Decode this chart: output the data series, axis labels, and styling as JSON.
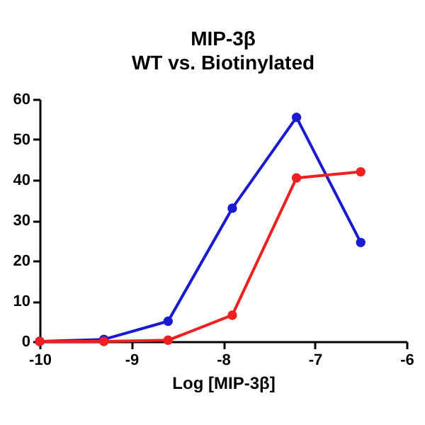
{
  "chart_data": {
    "type": "line",
    "title": "MIP-3β",
    "subtitle": "WT vs. Biotinylated",
    "xlabel": "Log [MIP-3β]",
    "x": [
      -10,
      -9.3,
      -8.6,
      -7.9,
      -7.2,
      -6.5
    ],
    "series": [
      {
        "color": "#1a1ad0",
        "values": [
          0,
          0.5,
          5,
          33,
          55.5,
          24.5
        ]
      },
      {
        "color": "#ee2020",
        "values": [
          0,
          0,
          0.3,
          6.5,
          40.5,
          42
        ]
      }
    ],
    "xlim": [
      -10,
      -6
    ],
    "xticks": [
      -10,
      -9,
      -8,
      -7,
      -6
    ],
    "ylim": [
      0,
      60
    ],
    "yticks": [
      0,
      10,
      20,
      30,
      40,
      50,
      60
    ],
    "grid": false,
    "legend": false,
    "marker": "circle",
    "line_style": "solid"
  }
}
